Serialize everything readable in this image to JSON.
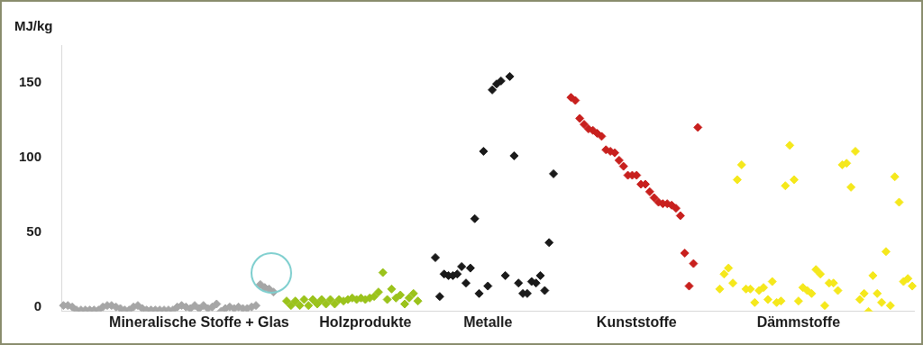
{
  "chart_data": {
    "type": "scatter",
    "ylabel": "MJ/kg",
    "marker": "diamond",
    "categories": [
      null,
      null,
      null,
      null,
      null,
      null,
      null,
      null,
      null,
      null,
      null,
      null,
      null,
      null,
      null,
      null,
      null,
      null,
      null,
      null,
      null,
      null,
      null,
      null,
      null,
      null,
      null,
      null,
      null,
      null,
      null,
      "Mineralische Stoffe + Glas",
      null,
      null,
      null,
      null,
      null,
      null,
      null,
      null,
      null,
      null,
      null,
      null,
      null,
      null,
      null,
      null,
      null,
      null,
      null,
      null,
      null,
      null,
      null,
      null,
      null,
      null,
      null,
      null,
      null,
      null,
      null,
      null,
      null,
      null,
      null,
      null,
      null,
      "Holzprodukte",
      null,
      null,
      null,
      null,
      null,
      null,
      null,
      null,
      null,
      null,
      null,
      null,
      null,
      null,
      null,
      null,
      null,
      null,
      null,
      null,
      null,
      null,
      null,
      null,
      null,
      null,
      null,
      "Metalle",
      null,
      null,
      null,
      null,
      null,
      null,
      null,
      null,
      null,
      null,
      null,
      null,
      null,
      null,
      null,
      null,
      null,
      null,
      null,
      null,
      null,
      null,
      null,
      null,
      null,
      null,
      null,
      null,
      null,
      null,
      null,
      null,
      null,
      "Kunststoffe",
      null,
      null,
      null,
      null,
      null,
      null,
      null,
      null,
      null,
      null,
      null,
      null,
      null,
      null,
      null,
      null,
      null,
      null,
      null,
      null,
      null,
      null,
      null,
      null,
      null,
      null,
      null,
      null,
      null,
      null,
      null,
      null,
      null,
      null,
      null,
      null,
      "Dämmstoffe",
      null,
      null,
      null,
      null,
      null,
      null,
      null,
      null,
      null,
      null,
      null,
      null,
      null,
      null,
      null,
      null,
      null,
      null,
      null,
      null,
      null,
      null,
      null,
      null,
      null,
      null
    ],
    "ylim": [
      -3,
      175
    ],
    "yticks": [
      0,
      50,
      100,
      150
    ],
    "series": [
      {
        "color": "#a6a6a6",
        "values": [
          1,
          1,
          0,
          -2,
          -2,
          -2,
          -2,
          -2,
          -2,
          0,
          1,
          1,
          0,
          -1,
          -2,
          -2,
          0,
          1,
          -1,
          -2,
          -2,
          -2,
          -2,
          -2,
          -2,
          -2,
          0,
          1,
          0,
          -1,
          1,
          -1,
          1,
          -1,
          0,
          2,
          -3,
          -1,
          0,
          -1,
          0,
          -1,
          -1,
          0,
          1,
          15,
          13,
          12,
          10,
          null,
          null,
          null,
          null,
          null,
          null,
          null,
          null,
          null,
          null,
          null,
          null,
          null,
          null,
          null,
          null,
          null,
          null,
          null,
          null,
          null,
          null,
          null,
          null,
          null,
          null,
          null,
          null,
          null,
          null,
          null,
          null,
          null,
          null,
          null,
          null,
          null,
          null,
          null,
          null,
          null,
          null,
          null,
          null,
          null,
          null,
          null,
          null,
          null,
          null,
          null,
          null,
          null,
          null,
          null,
          null,
          null,
          null,
          null,
          null,
          null,
          null,
          null,
          null,
          null,
          null,
          null,
          null,
          null,
          null,
          null,
          null,
          null,
          null,
          null,
          null,
          null,
          null,
          null,
          null,
          null,
          null,
          null,
          null,
          null,
          null,
          null,
          null,
          null,
          null,
          null,
          null,
          null,
          null,
          null,
          null,
          null,
          null,
          null,
          null,
          null,
          null,
          null,
          null,
          null,
          null,
          null,
          null,
          null,
          null,
          null,
          null,
          null,
          null,
          null,
          null,
          null,
          null,
          null,
          null,
          null,
          null,
          null,
          null,
          null,
          null,
          null,
          null,
          null,
          null,
          null,
          null,
          null,
          null,
          null,
          null,
          null,
          null,
          null,
          null,
          null,
          null,
          null,
          null,
          null,
          null
        ]
      },
      {
        "color": "#9bc31c",
        "values": [
          null,
          null,
          null,
          null,
          null,
          null,
          null,
          null,
          null,
          null,
          null,
          null,
          null,
          null,
          null,
          null,
          null,
          null,
          null,
          null,
          null,
          null,
          null,
          null,
          null,
          null,
          null,
          null,
          null,
          null,
          null,
          null,
          null,
          null,
          null,
          null,
          null,
          null,
          null,
          null,
          null,
          null,
          null,
          null,
          null,
          null,
          null,
          null,
          null,
          null,
          null,
          4,
          1,
          4,
          1,
          5,
          1,
          5,
          2,
          5,
          2,
          5,
          2,
          5,
          4,
          5,
          6,
          5,
          6,
          5,
          6,
          7,
          10,
          23,
          5,
          12,
          6,
          8,
          2,
          6,
          9,
          4,
          null,
          null,
          null,
          null,
          null,
          null,
          null,
          null,
          null,
          null,
          null,
          null,
          null,
          null,
          null,
          null,
          null,
          null,
          null,
          null,
          null,
          null,
          null,
          null,
          null,
          null,
          null,
          null,
          null,
          null,
          null,
          null,
          null,
          null,
          null,
          null,
          null,
          null,
          null,
          null,
          null,
          null,
          null,
          null,
          null,
          null,
          null,
          null,
          null,
          null,
          null,
          null,
          null,
          null,
          null,
          null,
          null,
          null,
          null,
          null,
          null,
          null,
          null,
          null,
          null,
          null,
          null,
          null,
          null,
          null,
          null,
          null,
          null,
          null,
          null,
          null,
          null,
          null,
          null,
          null,
          null,
          null,
          null,
          null,
          null,
          null,
          null,
          null,
          null,
          null,
          null,
          null,
          null,
          null,
          null,
          null,
          null,
          null,
          null,
          null,
          null,
          null,
          null,
          null,
          null,
          null,
          null,
          null,
          null,
          null,
          null,
          null,
          null
        ]
      },
      {
        "color": "#1a1a1a",
        "values": [
          null,
          null,
          null,
          null,
          null,
          null,
          null,
          null,
          null,
          null,
          null,
          null,
          null,
          null,
          null,
          null,
          null,
          null,
          null,
          null,
          null,
          null,
          null,
          null,
          null,
          null,
          null,
          null,
          null,
          null,
          null,
          null,
          null,
          null,
          null,
          null,
          null,
          null,
          null,
          null,
          null,
          null,
          null,
          null,
          null,
          null,
          null,
          null,
          null,
          null,
          null,
          null,
          null,
          null,
          null,
          null,
          null,
          null,
          null,
          null,
          null,
          null,
          null,
          null,
          null,
          null,
          null,
          null,
          null,
          null,
          null,
          null,
          null,
          null,
          null,
          null,
          null,
          null,
          null,
          null,
          null,
          null,
          null,
          null,
          null,
          33,
          7,
          22,
          21,
          21,
          22,
          27,
          16,
          26,
          59,
          9,
          104,
          14,
          145,
          149,
          151,
          21,
          154,
          101,
          16,
          9,
          9,
          17,
          16,
          21,
          11,
          43,
          89,
          null,
          null,
          null,
          null,
          null,
          null,
          null,
          null,
          null,
          null,
          null,
          null,
          null,
          null,
          null,
          null,
          null,
          null,
          null,
          null,
          null,
          null,
          null,
          null,
          null,
          null,
          null,
          null,
          null,
          null,
          null,
          null,
          null,
          null,
          null,
          null,
          null,
          null,
          null,
          null,
          null,
          null,
          null,
          null,
          null,
          null,
          null,
          null,
          null,
          null,
          null,
          null,
          null,
          null,
          null,
          null,
          null,
          null,
          null,
          null,
          null,
          null,
          null,
          null,
          null,
          null,
          null,
          null,
          null,
          null,
          null,
          null,
          null,
          null,
          null,
          null,
          null,
          null,
          null,
          null,
          null,
          null
        ]
      },
      {
        "color": "#c8201e",
        "values": [
          null,
          null,
          null,
          null,
          null,
          null,
          null,
          null,
          null,
          null,
          null,
          null,
          null,
          null,
          null,
          null,
          null,
          null,
          null,
          null,
          null,
          null,
          null,
          null,
          null,
          null,
          null,
          null,
          null,
          null,
          null,
          null,
          null,
          null,
          null,
          null,
          null,
          null,
          null,
          null,
          null,
          null,
          null,
          null,
          null,
          null,
          null,
          null,
          null,
          null,
          null,
          null,
          null,
          null,
          null,
          null,
          null,
          null,
          null,
          null,
          null,
          null,
          null,
          null,
          null,
          null,
          null,
          null,
          null,
          null,
          null,
          null,
          null,
          null,
          null,
          null,
          null,
          null,
          null,
          null,
          null,
          null,
          null,
          null,
          null,
          null,
          null,
          null,
          null,
          null,
          null,
          null,
          null,
          null,
          null,
          null,
          null,
          null,
          null,
          null,
          null,
          null,
          null,
          null,
          null,
          null,
          null,
          null,
          null,
          null,
          null,
          null,
          null,
          null,
          null,
          null,
          140,
          138,
          126,
          122,
          119,
          118,
          116,
          114,
          105,
          104,
          103,
          98,
          94,
          88,
          88,
          88,
          82,
          82,
          77,
          73,
          70,
          69,
          69,
          68,
          66,
          61,
          36,
          14,
          29,
          120,
          null,
          null,
          null,
          null,
          null,
          null,
          null,
          null,
          null,
          null,
          null,
          null,
          null,
          null,
          null,
          null,
          null,
          null,
          null,
          null,
          null,
          null,
          null,
          null,
          null,
          null,
          null,
          null,
          null,
          null,
          null,
          null,
          null,
          null,
          null,
          null,
          null,
          null,
          null,
          null,
          null,
          null,
          null,
          null,
          null,
          null,
          null,
          null,
          null
        ]
      },
      {
        "color": "#f5e81c",
        "values": [
          null,
          null,
          null,
          null,
          null,
          null,
          null,
          null,
          null,
          null,
          null,
          null,
          null,
          null,
          null,
          null,
          null,
          null,
          null,
          null,
          null,
          null,
          null,
          null,
          null,
          null,
          null,
          null,
          null,
          null,
          null,
          null,
          null,
          null,
          null,
          null,
          null,
          null,
          null,
          null,
          null,
          null,
          null,
          null,
          null,
          null,
          null,
          null,
          null,
          null,
          null,
          null,
          null,
          null,
          null,
          null,
          null,
          null,
          null,
          null,
          null,
          null,
          null,
          null,
          null,
          null,
          null,
          null,
          null,
          null,
          null,
          null,
          null,
          null,
          null,
          null,
          null,
          null,
          null,
          null,
          null,
          null,
          null,
          null,
          null,
          null,
          null,
          null,
          null,
          null,
          null,
          null,
          null,
          null,
          null,
          null,
          null,
          null,
          null,
          null,
          null,
          null,
          null,
          null,
          null,
          null,
          null,
          null,
          null,
          null,
          null,
          null,
          null,
          null,
          null,
          null,
          null,
          null,
          null,
          null,
          null,
          null,
          null,
          null,
          null,
          null,
          null,
          null,
          null,
          null,
          null,
          null,
          null,
          null,
          null,
          null,
          null,
          null,
          null,
          null,
          null,
          null,
          null,
          null,
          null,
          null,
          null,
          null,
          null,
          null,
          12,
          22,
          26,
          16,
          85,
          95,
          12,
          12,
          3,
          11,
          13,
          5,
          17,
          3,
          4,
          81,
          108,
          85,
          4,
          13,
          11,
          9,
          25,
          22,
          1,
          16,
          16,
          11,
          95,
          96,
          80,
          104,
          5,
          9,
          -3,
          21,
          9,
          3,
          37,
          1,
          87,
          70,
          17,
          19,
          14
        ]
      }
    ]
  }
}
